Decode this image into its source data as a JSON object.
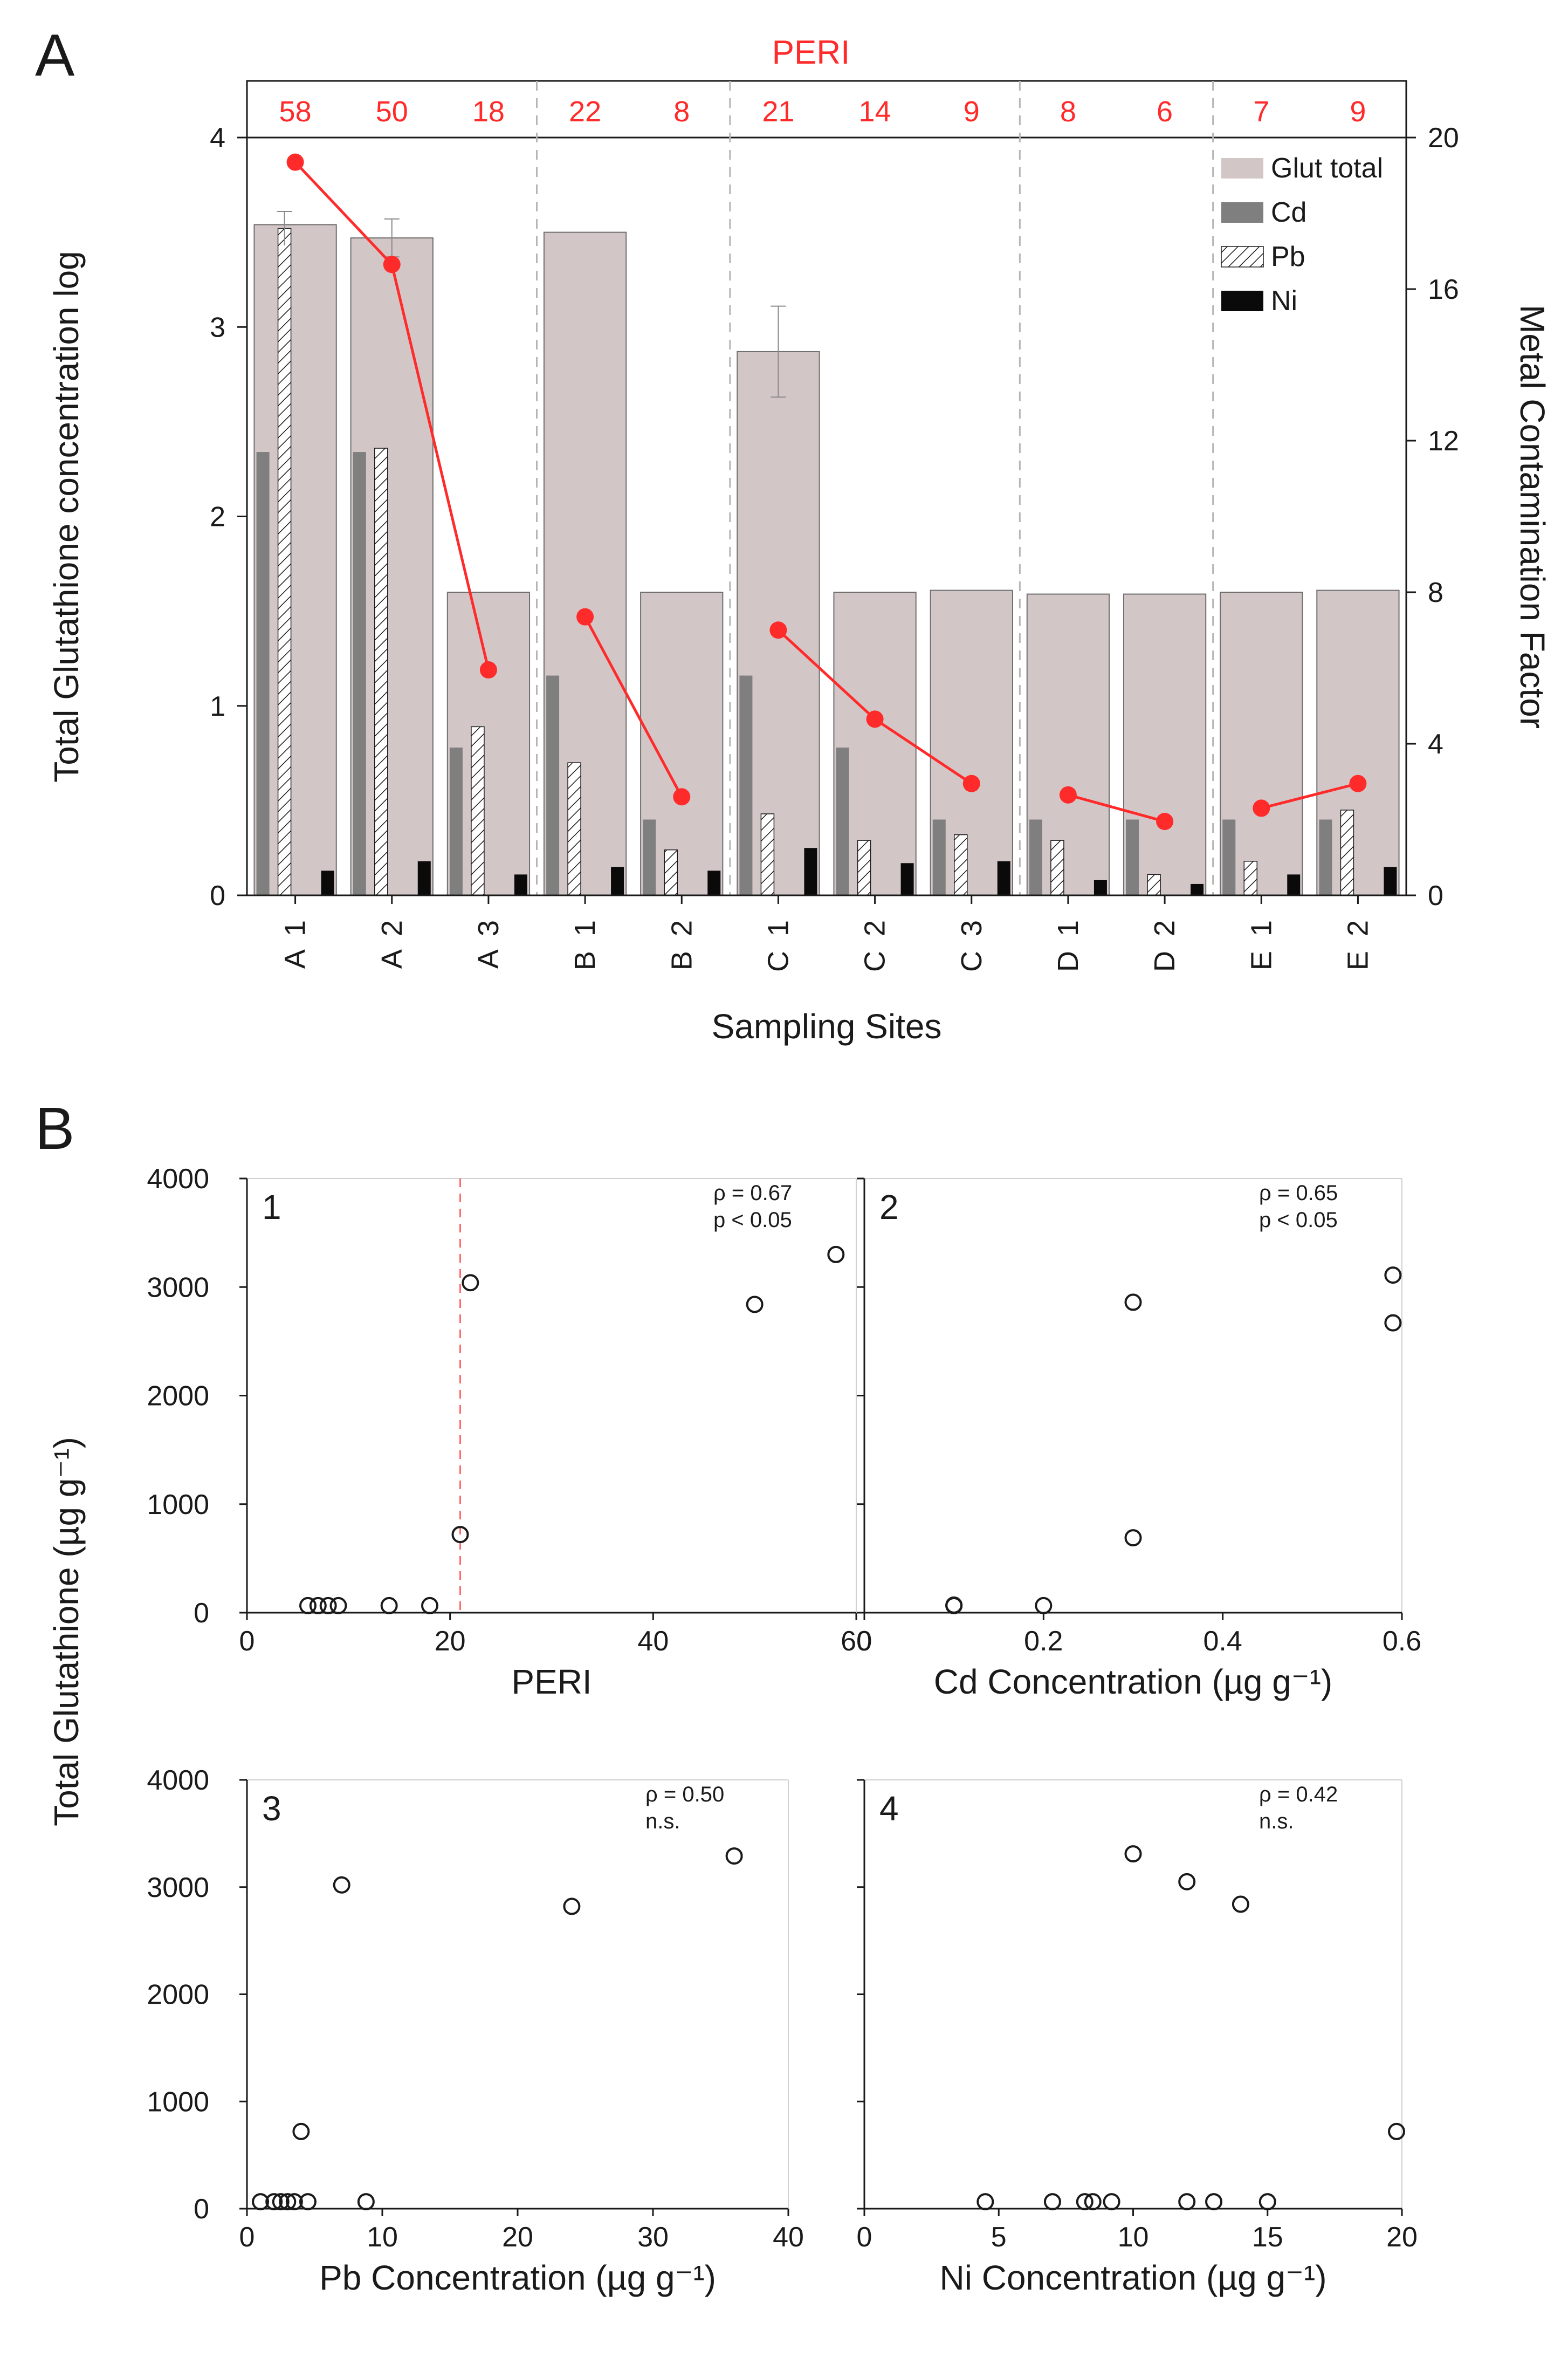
{
  "panel_a_letter": "A",
  "panel_b_letter": "B",
  "chart_data": [
    {
      "type": "bar",
      "panel": "A",
      "top_strip_title": "PERI",
      "xlabel": "Sampling Sites",
      "ylabel": "Total Glutathione concentration log",
      "y2label": "Metal Contamination Factor",
      "categories": [
        "A 1",
        "A 2",
        "A 3",
        "B 1",
        "B 2",
        "C 1",
        "C 2",
        "C 3",
        "D 1",
        "D 2",
        "E 1",
        "E 2"
      ],
      "peri": [
        "58",
        "50",
        "18",
        "22",
        "8",
        "21",
        "14",
        "9",
        "8",
        "6",
        "7",
        "9"
      ],
      "group_breaks_after_index": [
        2,
        4,
        7,
        9
      ],
      "ylim": [
        0,
        4
      ],
      "yticks": [
        "0",
        "1",
        "2",
        "3",
        "4"
      ],
      "y2lim": [
        0,
        20
      ],
      "y2ticks": [
        "0",
        "4",
        "8",
        "12",
        "16",
        "20"
      ],
      "series": [
        {
          "name": "Glut total",
          "axis": "left",
          "color": "#d3c6c6",
          "values": [
            3.54,
            3.47,
            1.6,
            3.5,
            1.6,
            2.87,
            1.6,
            1.61,
            1.59,
            1.59,
            1.6,
            1.61
          ],
          "error": [
            0,
            0.1,
            0,
            0,
            0,
            0.24,
            0,
            0,
            0,
            0,
            0,
            0
          ]
        },
        {
          "name": "Cd",
          "axis": "right",
          "color": "#7f7f7f",
          "values": [
            11.7,
            11.7,
            3.9,
            5.8,
            2.0,
            5.8,
            3.9,
            2.0,
            2.0,
            2.0,
            2.0,
            2.0
          ]
        },
        {
          "name": "Pb",
          "axis": "right",
          "pattern": "hatch",
          "values": [
            17.6,
            11.8,
            4.45,
            3.5,
            1.2,
            2.15,
            1.45,
            1.6,
            1.45,
            0.55,
            0.9,
            2.25
          ],
          "error": [
            0.45,
            0,
            0,
            0,
            0,
            0,
            0,
            0,
            0,
            0,
            0,
            0
          ]
        },
        {
          "name": "Ni",
          "axis": "right",
          "color": "#0a0a0a",
          "values": [
            0.65,
            0.9,
            0.55,
            0.75,
            0.65,
            1.25,
            0.85,
            0.9,
            0.4,
            0.3,
            0.55,
            0.75
          ]
        },
        {
          "name": "PERI",
          "axis": "left",
          "type": "line",
          "color": "#ff2a2a",
          "points": [
            [
              0,
              3.87
            ],
            [
              1,
              3.33
            ],
            [
              2,
              1.19
            ],
            [
              3,
              1.47
            ],
            [
              4,
              0.52
            ],
            [
              5,
              1.4
            ],
            [
              6,
              0.93
            ],
            [
              7,
              0.59
            ],
            [
              8,
              0.53
            ],
            [
              9,
              0.39
            ],
            [
              10,
              0.46
            ],
            [
              11,
              0.59
            ]
          ],
          "segments": [
            [
              0,
              2
            ],
            [
              3,
              4
            ],
            [
              5,
              7
            ],
            [
              8,
              9
            ],
            [
              10,
              11
            ]
          ]
        }
      ],
      "legend": [
        "Glut total",
        "Cd",
        "Pb",
        "Ni"
      ],
      "legend_position": "top-right"
    },
    {
      "type": "scatter",
      "panel": "B1",
      "label": "1",
      "xlabel": "PERI",
      "ylabel": "Total Glutathione (µg g⁻¹)",
      "xlim": [
        0,
        60
      ],
      "xticks": [
        "0",
        "20",
        "40",
        "60"
      ],
      "ylim": [
        0,
        4000
      ],
      "yticks": [
        "0",
        "1000",
        "2000",
        "3000",
        "4000"
      ],
      "stats": [
        "ρ = 0.67",
        "p < 0.05"
      ],
      "vline_x": 21,
      "points": [
        [
          6,
          65
        ],
        [
          7,
          65
        ],
        [
          8,
          65
        ],
        [
          9,
          65
        ],
        [
          14,
          65
        ],
        [
          18,
          65
        ],
        [
          21,
          720
        ],
        [
          22,
          3040
        ],
        [
          50,
          2840
        ],
        [
          58,
          3300
        ]
      ]
    },
    {
      "type": "scatter",
      "panel": "B2",
      "label": "2",
      "xlabel": "Cd Concentration (µg g⁻¹)",
      "xlim": [
        0,
        0.6
      ],
      "xticks": [
        "0",
        "0.2",
        "0.4",
        "0.6"
      ],
      "ylim": [
        0,
        4000
      ],
      "stats": [
        "ρ = 0.65",
        "p < 0.05"
      ],
      "points": [
        [
          0.1,
          65
        ],
        [
          0.1,
          65
        ],
        [
          0.1,
          70
        ],
        [
          0.2,
          65
        ],
        [
          0.3,
          690
        ],
        [
          0.3,
          2860
        ],
        [
          0.59,
          3110
        ],
        [
          0.59,
          2670
        ]
      ]
    },
    {
      "type": "scatter",
      "panel": "B3",
      "label": "3",
      "xlabel": "Pb Concentration (µg g⁻¹)",
      "ylabel": "Total Glutathione (µg g⁻¹)",
      "xlim": [
        0,
        40
      ],
      "xticks": [
        "0",
        "10",
        "20",
        "30",
        "40"
      ],
      "ylim": [
        0,
        4000
      ],
      "yticks": [
        "0",
        "1000",
        "2000",
        "3000",
        "4000"
      ],
      "stats": [
        "ρ = 0.50",
        "n.s."
      ],
      "points": [
        [
          1,
          65
        ],
        [
          2,
          65
        ],
        [
          2.5,
          65
        ],
        [
          3,
          65
        ],
        [
          3.5,
          65
        ],
        [
          4.5,
          65
        ],
        [
          8.8,
          65
        ],
        [
          4,
          720
        ],
        [
          7,
          3020
        ],
        [
          24,
          2820
        ],
        [
          36,
          3290
        ]
      ]
    },
    {
      "type": "scatter",
      "panel": "B4",
      "label": "4",
      "xlabel": "Ni Concentration (µg g⁻¹)",
      "xlim": [
        0,
        20
      ],
      "xticks": [
        "0",
        "5",
        "10",
        "15",
        "20"
      ],
      "ylim": [
        0,
        4000
      ],
      "stats": [
        "ρ = 0.42",
        "n.s."
      ],
      "points": [
        [
          4.5,
          65
        ],
        [
          7,
          65
        ],
        [
          8.2,
          65
        ],
        [
          8.5,
          65
        ],
        [
          9.2,
          65
        ],
        [
          12,
          65
        ],
        [
          13,
          65
        ],
        [
          15,
          65
        ],
        [
          10,
          3310
        ],
        [
          12,
          3050
        ],
        [
          14,
          2840
        ],
        [
          19.8,
          720
        ]
      ]
    }
  ]
}
